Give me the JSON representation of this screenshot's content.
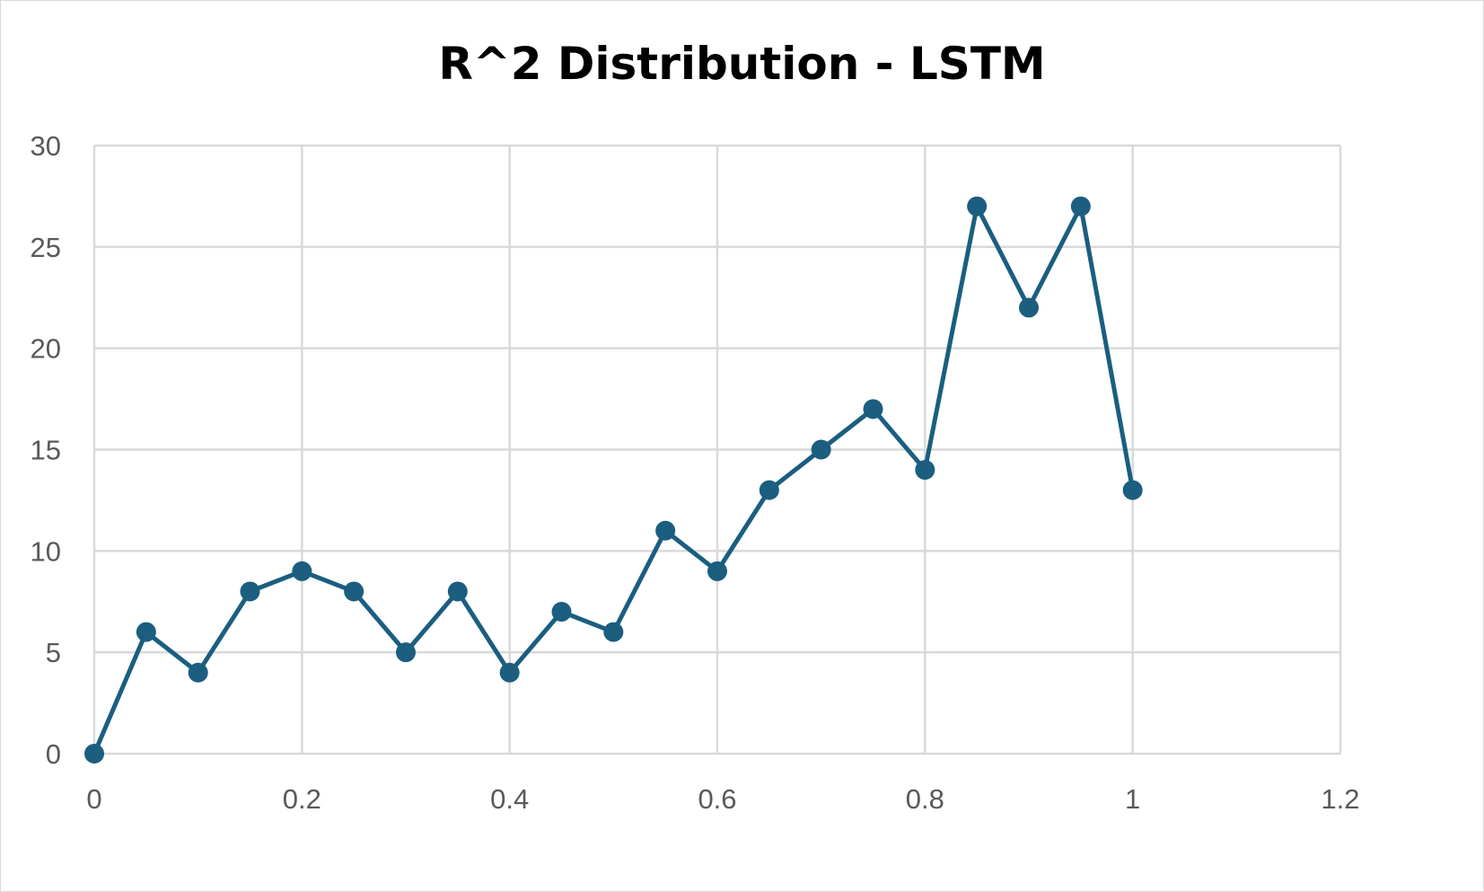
{
  "chart_data": {
    "type": "line",
    "title": "R^2 Distribution - LSTM",
    "xlabel": "",
    "ylabel": "",
    "x": [
      0,
      0.05,
      0.1,
      0.15,
      0.2,
      0.25,
      0.3,
      0.35,
      0.4,
      0.45,
      0.5,
      0.55,
      0.6,
      0.65,
      0.7,
      0.75,
      0.8,
      0.85,
      0.9,
      0.95,
      1
    ],
    "series": [
      {
        "values": [
          0,
          6,
          4,
          8,
          9,
          8,
          5,
          8,
          4,
          7,
          6,
          11,
          9,
          13,
          15,
          17,
          14,
          27,
          22,
          27,
          13
        ],
        "color": "#1b5e80"
      }
    ],
    "xlim": [
      0,
      1.2
    ],
    "ylim": [
      0,
      30
    ],
    "x_ticks": [
      0,
      0.2,
      0.4,
      0.6,
      0.8,
      1,
      1.2
    ],
    "x_tick_labels": [
      "0",
      "0.2",
      "0.4",
      "0.6",
      "0.8",
      "1",
      "1.2"
    ],
    "y_ticks": [
      0,
      5,
      10,
      15,
      20,
      25,
      30
    ],
    "y_tick_labels": [
      "0",
      "5",
      "10",
      "15",
      "20",
      "25",
      "30"
    ],
    "grid": true,
    "markers": "circle",
    "gridline_color": "#d9d9d9",
    "label_color": "#595959"
  }
}
